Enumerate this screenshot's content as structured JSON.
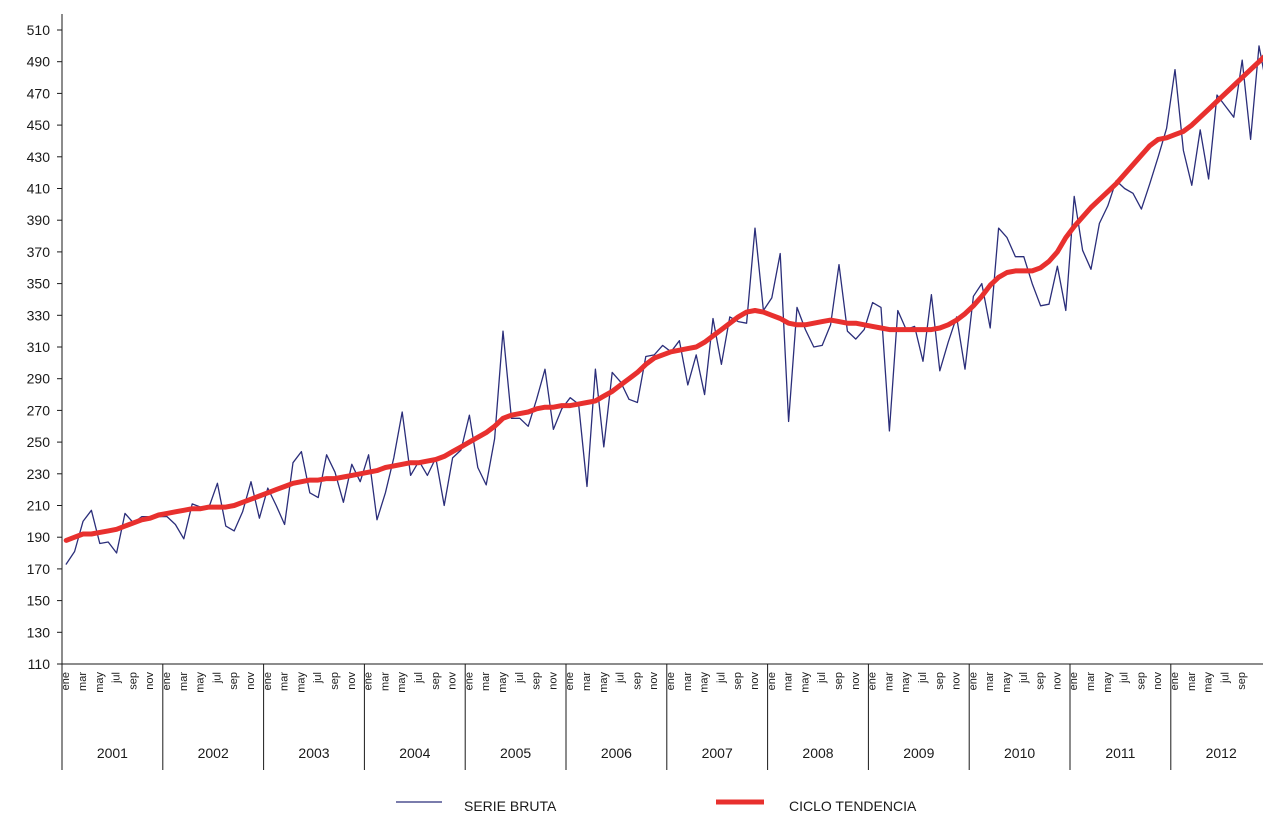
{
  "chart_data": {
    "type": "line",
    "title": "",
    "xlabel": "",
    "ylabel": "",
    "ylim": [
      110,
      510
    ],
    "yticks": [
      110,
      130,
      150,
      170,
      190,
      210,
      230,
      250,
      270,
      290,
      310,
      330,
      350,
      370,
      390,
      410,
      430,
      450,
      470,
      490,
      510
    ],
    "grid": false,
    "legend_position": "bottom",
    "years": [
      "2001",
      "2002",
      "2003",
      "2004",
      "2005",
      "2006",
      "2007",
      "2008",
      "2009",
      "2010",
      "2011",
      "2012"
    ],
    "month_labels": [
      "ene",
      "mar",
      "may",
      "jul",
      "sep",
      "nov"
    ],
    "series": [
      {
        "name": "SERIE BRUTA",
        "color": "#2b2e7a",
        "values": [
          173,
          181,
          200,
          207,
          186,
          187,
          180,
          205,
          199,
          203,
          203,
          203,
          203,
          198,
          189,
          211,
          209,
          209,
          224,
          197,
          194,
          206,
          225,
          202,
          221,
          210,
          198,
          237,
          244,
          218,
          215,
          242,
          231,
          212,
          236,
          225,
          242,
          201,
          218,
          240,
          269,
          229,
          238,
          229,
          240,
          210,
          240,
          245,
          267,
          234,
          223,
          252,
          320,
          265,
          265,
          260,
          277,
          296,
          258,
          271,
          278,
          274,
          222,
          296,
          247,
          294,
          288,
          277,
          275,
          304,
          305,
          311,
          307,
          314,
          286,
          305,
          280,
          328,
          299,
          329,
          326,
          325,
          385,
          333,
          341,
          369,
          263,
          335,
          321,
          310,
          311,
          324,
          362,
          320,
          315,
          321,
          338,
          335,
          257,
          333,
          321,
          323,
          301,
          343,
          295,
          313,
          329,
          296,
          342,
          350,
          322,
          385,
          379,
          367,
          367,
          350,
          336,
          337,
          361,
          333,
          405,
          371,
          359,
          388,
          399,
          415,
          410,
          407,
          397,
          413,
          430,
          448,
          485,
          434,
          412,
          447,
          416,
          469,
          462,
          455,
          491,
          441,
          500,
          472,
          490
        ]
      },
      {
        "name": "CICLO TENDENCIA",
        "color": "#e8302e",
        "values": [
          188,
          190,
          192,
          192,
          193,
          194,
          195,
          197,
          199,
          201,
          202,
          204,
          205,
          206,
          207,
          208,
          208,
          209,
          209,
          209,
          210,
          212,
          214,
          216,
          218,
          220,
          222,
          224,
          225,
          226,
          226,
          227,
          227,
          228,
          229,
          230,
          231,
          232,
          234,
          235,
          236,
          237,
          237,
          238,
          239,
          241,
          244,
          247,
          250,
          253,
          256,
          260,
          265,
          267,
          268,
          269,
          271,
          272,
          272,
          273,
          273,
          274,
          275,
          276,
          279,
          282,
          286,
          290,
          294,
          299,
          303,
          305,
          307,
          308,
          309,
          310,
          313,
          317,
          321,
          325,
          329,
          332,
          333,
          332,
          330,
          328,
          325,
          324,
          324,
          325,
          326,
          327,
          326,
          325,
          325,
          324,
          323,
          322,
          321,
          321,
          321,
          321,
          321,
          321,
          322,
          324,
          327,
          331,
          336,
          342,
          349,
          354,
          357,
          358,
          358,
          358,
          360,
          364,
          370,
          379,
          386,
          392,
          398,
          403,
          408,
          413,
          419,
          425,
          431,
          437,
          441,
          442,
          444,
          446,
          450,
          455,
          460,
          465,
          470,
          475,
          480,
          485,
          490,
          495,
          500
        ]
      }
    ]
  }
}
